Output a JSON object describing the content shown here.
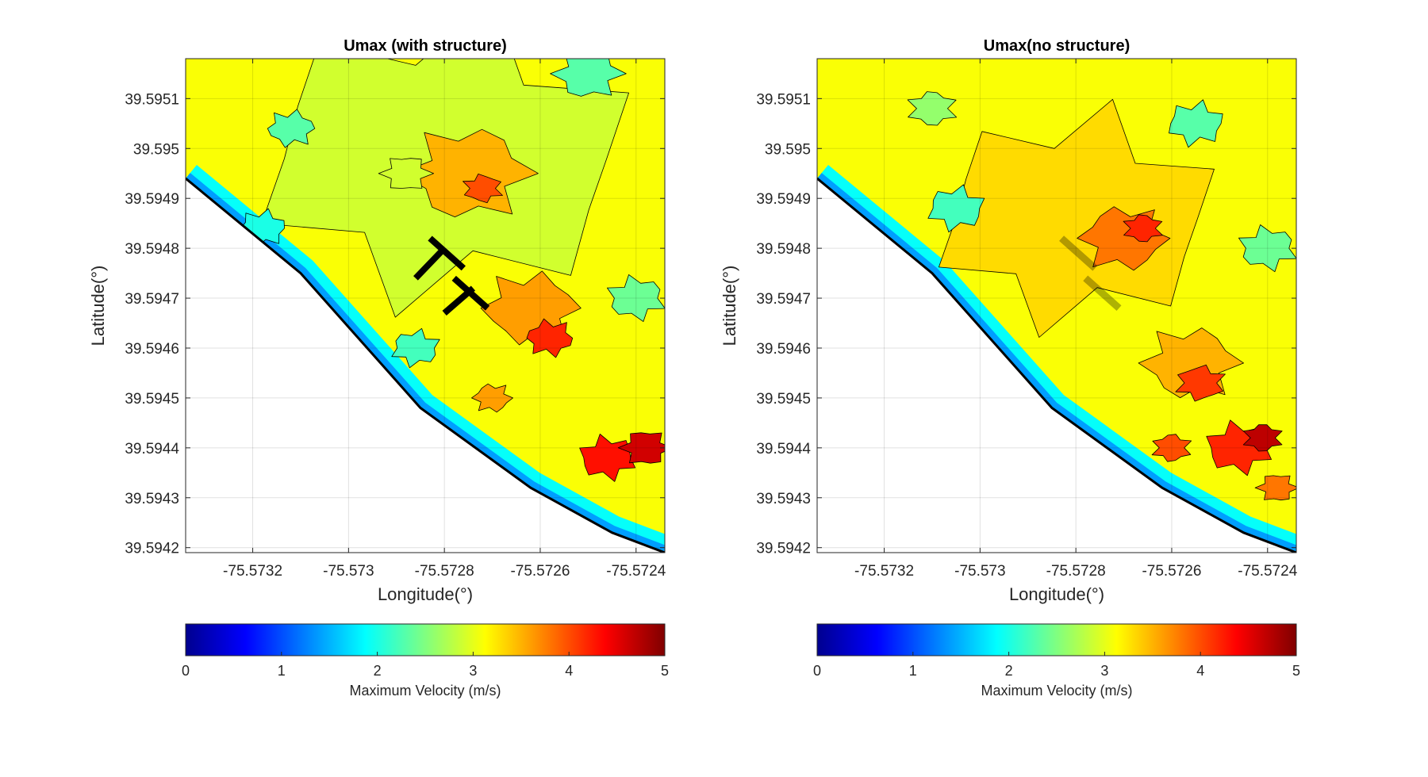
{
  "figure": {
    "colorbar_min": 0,
    "colorbar_max": 5,
    "colormap": [
      "#00008f",
      "#0000ff",
      "#0080ff",
      "#00ffff",
      "#80ff80",
      "#ffff00",
      "#ff8000",
      "#ff0000",
      "#800000"
    ]
  },
  "chart_data": [
    {
      "type": "heatmap",
      "title": "Umax (with structure)",
      "xlabel": "Longitude(°)",
      "ylabel": "Latitude(°)",
      "xlim": [
        -75.57334,
        -75.57234
      ],
      "ylim": [
        39.59419,
        39.59518
      ],
      "x_ticks": [
        -75.5732,
        -75.573,
        -75.5728,
        -75.5726,
        -75.5724
      ],
      "x_tick_labels": [
        "-75.5732",
        "-75.573",
        "-75.5728",
        "-75.5726",
        "-75.5724"
      ],
      "y_ticks": [
        39.5942,
        39.5943,
        39.5944,
        39.5945,
        39.5946,
        39.5947,
        39.5948,
        39.5949,
        39.595,
        39.5951
      ],
      "y_tick_labels": [
        "39.5942",
        "39.5943",
        "39.5944",
        "39.5945",
        "39.5946",
        "39.5947",
        "39.5948",
        "39.5949",
        "39.595",
        "39.5951"
      ],
      "grid": true,
      "shoreline": [
        [
          -75.57334,
          39.59494
        ],
        [
          -75.5731,
          39.59475
        ],
        [
          -75.57285,
          39.59448
        ],
        [
          -75.57262,
          39.59432
        ],
        [
          -75.57245,
          39.59423
        ],
        [
          -75.57234,
          39.59419
        ]
      ],
      "has_structure": true,
      "structure_label": "structure (T-shaped groins)",
      "structure_segments": [
        [
          [
            -75.57283,
            39.59482
          ],
          [
            -75.57276,
            39.59476
          ]
        ],
        [
          [
            -75.5728,
            39.5948
          ],
          [
            -75.57286,
            39.59474
          ]
        ],
        [
          [
            -75.57278,
            39.59474
          ],
          [
            -75.57271,
            39.59468
          ]
        ],
        [
          [
            -75.57274,
            39.59472
          ],
          [
            -75.5728,
            39.59467
          ]
        ]
      ],
      "velocity_regions": [
        {
          "lon": -75.5728,
          "lat": 39.59498,
          "umax": 2.9,
          "r": 0.0004
        },
        {
          "lon": -75.57275,
          "lat": 39.59495,
          "umax": 3.5,
          "r": 0.00013
        },
        {
          "lon": -75.57272,
          "lat": 39.59492,
          "umax": 4.0,
          "r": 4e-05
        },
        {
          "lon": -75.57288,
          "lat": 39.59495,
          "umax": 2.9,
          "r": 5e-05
        },
        {
          "lon": -75.57262,
          "lat": 39.59468,
          "umax": 3.6,
          "r": 0.0001
        },
        {
          "lon": -75.57258,
          "lat": 39.59462,
          "umax": 4.2,
          "r": 5e-05
        },
        {
          "lon": -75.57246,
          "lat": 39.59438,
          "umax": 4.3,
          "r": 6e-05
        },
        {
          "lon": -75.57238,
          "lat": 39.5944,
          "umax": 4.6,
          "r": 5e-05
        },
        {
          "lon": -75.5727,
          "lat": 39.5945,
          "umax": 3.6,
          "r": 4e-05
        },
        {
          "lon": -75.57312,
          "lat": 39.59504,
          "umax": 2.3,
          "r": 5e-05
        },
        {
          "lon": -75.5725,
          "lat": 39.59515,
          "umax": 2.3,
          "r": 7e-05
        },
        {
          "lon": -75.5724,
          "lat": 39.5947,
          "umax": 2.4,
          "r": 6e-05
        },
        {
          "lon": -75.57286,
          "lat": 39.5946,
          "umax": 2.2,
          "r": 5e-05
        },
        {
          "lon": -75.57318,
          "lat": 39.59484,
          "umax": 2.0,
          "r": 5e-05
        }
      ]
    },
    {
      "type": "heatmap",
      "title": "Umax(no structure)",
      "xlabel": "Longitude(°)",
      "ylabel": "Latitude(°)",
      "xlim": [
        -75.57334,
        -75.57234
      ],
      "ylim": [
        39.59419,
        39.59518
      ],
      "x_ticks": [
        -75.5732,
        -75.573,
        -75.5728,
        -75.5726,
        -75.5724
      ],
      "x_tick_labels": [
        "-75.5732",
        "-75.573",
        "-75.5728",
        "-75.5726",
        "-75.5724"
      ],
      "y_ticks": [
        39.5942,
        39.5943,
        39.5944,
        39.5945,
        39.5946,
        39.5947,
        39.5948,
        39.5949,
        39.595,
        39.5951
      ],
      "y_tick_labels": [
        "39.5942",
        "39.5943",
        "39.5944",
        "39.5945",
        "39.5946",
        "39.5947",
        "39.5948",
        "39.5949",
        "39.595",
        "39.5951"
      ],
      "grid": true,
      "shoreline": [
        [
          -75.57334,
          39.59494
        ],
        [
          -75.5731,
          39.59475
        ],
        [
          -75.57285,
          39.59448
        ],
        [
          -75.57262,
          39.59432
        ],
        [
          -75.57245,
          39.59423
        ],
        [
          -75.57234,
          39.59419
        ]
      ],
      "has_structure": false,
      "structure_label": "structure outline (faint)",
      "structure_segments": [
        [
          [
            -75.57283,
            39.59482
          ],
          [
            -75.57276,
            39.59476
          ]
        ],
        [
          [
            -75.57278,
            39.59474
          ],
          [
            -75.57271,
            39.59468
          ]
        ]
      ],
      "velocity_regions": [
        {
          "lon": -75.5728,
          "lat": 39.59486,
          "umax": 3.3,
          "r": 0.0003
        },
        {
          "lon": -75.5727,
          "lat": 39.59482,
          "umax": 3.8,
          "r": 9e-05
        },
        {
          "lon": -75.57266,
          "lat": 39.59484,
          "umax": 4.2,
          "r": 4e-05
        },
        {
          "lon": -75.57256,
          "lat": 39.59457,
          "umax": 3.5,
          "r": 0.0001
        },
        {
          "lon": -75.57254,
          "lat": 39.59453,
          "umax": 4.1,
          "r": 5e-05
        },
        {
          "lon": -75.57246,
          "lat": 39.5944,
          "umax": 4.2,
          "r": 7e-05
        },
        {
          "lon": -75.57241,
          "lat": 39.59442,
          "umax": 4.7,
          "r": 4e-05
        },
        {
          "lon": -75.5726,
          "lat": 39.5944,
          "umax": 4.0,
          "r": 4e-05
        },
        {
          "lon": -75.57238,
          "lat": 39.59432,
          "umax": 3.8,
          "r": 4e-05
        },
        {
          "lon": -75.57255,
          "lat": 39.59505,
          "umax": 2.3,
          "r": 6e-05
        },
        {
          "lon": -75.5724,
          "lat": 39.5948,
          "umax": 2.4,
          "r": 6e-05
        },
        {
          "lon": -75.5731,
          "lat": 39.59508,
          "umax": 2.6,
          "r": 5e-05
        },
        {
          "lon": -75.57305,
          "lat": 39.59488,
          "umax": 2.2,
          "r": 6e-05
        }
      ]
    }
  ],
  "colorbars": [
    {
      "ticks": [
        0,
        1,
        2,
        3,
        4,
        5
      ],
      "tick_labels": [
        "0",
        "1",
        "2",
        "3",
        "4",
        "5"
      ],
      "label": "Maximum Velocity (m/s)"
    },
    {
      "ticks": [
        0,
        1,
        2,
        3,
        4,
        5
      ],
      "tick_labels": [
        "0",
        "1",
        "2",
        "3",
        "4",
        "5"
      ],
      "label": "Maximum Velocity (m/s)"
    }
  ]
}
